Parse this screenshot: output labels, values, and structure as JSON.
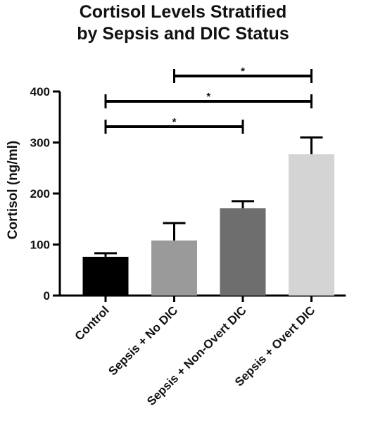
{
  "chart_data": {
    "type": "bar",
    "title_line1": "Cortisol Levels Stratified",
    "title_line2": "by Sepsis and  DIC Status",
    "xlabel": "",
    "ylabel": "Cortisol (ng/ml)",
    "ylim": [
      0,
      400
    ],
    "yticks": [
      0,
      100,
      200,
      300,
      400
    ],
    "ytick_labels": [
      "0",
      "100",
      "200",
      "300",
      "400"
    ],
    "categories": [
      "Control",
      "Sepsis + No DIC",
      "Sepsis + Non-Overt DIC",
      "Sepsis + Overt DIC"
    ],
    "values": [
      76,
      108,
      171,
      277
    ],
    "errors": [
      7,
      34,
      14,
      33
    ],
    "colors": [
      "#000000",
      "#9a9a9a",
      "#6e6e6e",
      "#d4d4d4"
    ],
    "grid": false,
    "significance": [
      {
        "from": 1,
        "to": 3,
        "label": "*"
      },
      {
        "from": 0,
        "to": 3,
        "label": "*"
      },
      {
        "from": 0,
        "to": 2,
        "label": "*"
      }
    ]
  }
}
